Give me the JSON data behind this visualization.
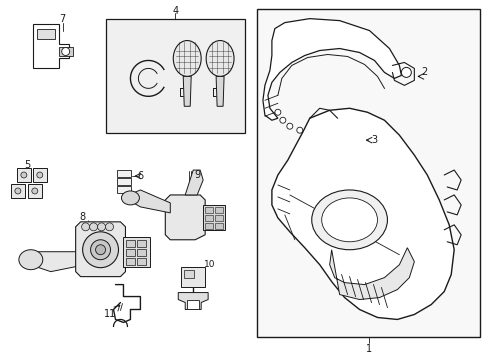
{
  "bg_color": "#ffffff",
  "fig_width": 4.89,
  "fig_height": 3.6,
  "dpi": 100,
  "line_color": "#1a1a1a",
  "fill_light": "#f0f0f0",
  "fill_white": "#ffffff",
  "fill_gray": "#e0e0e0"
}
